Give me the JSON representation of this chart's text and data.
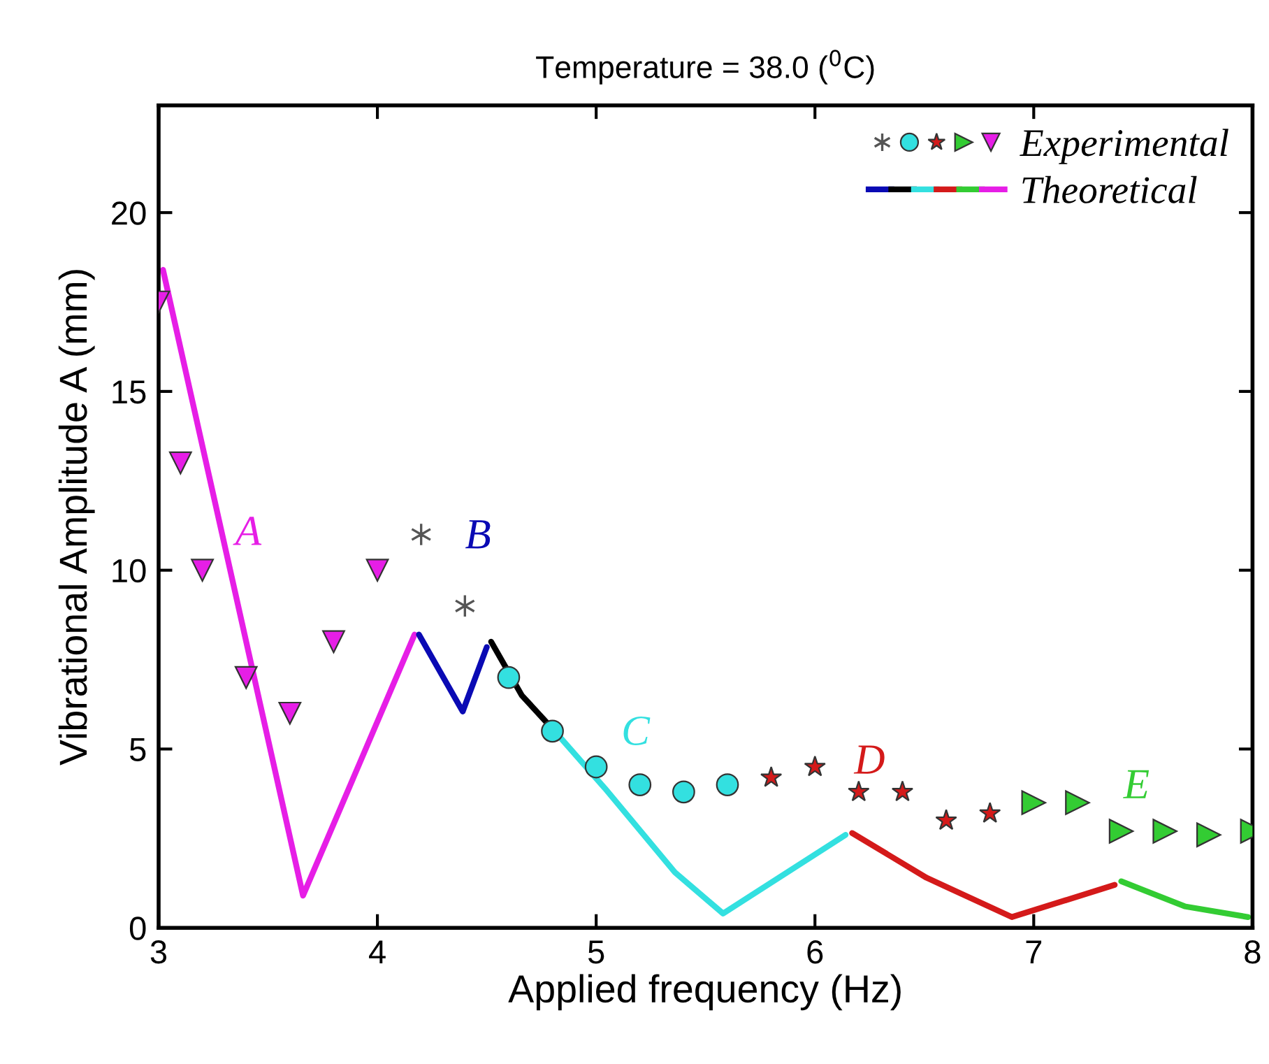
{
  "chart_data": {
    "type": "line",
    "title": "Temperature = 38.0 ($^{0}$C)",
    "xlabel": "Applied frequency (Hz)",
    "ylabel": "Vibrational Amplitude A (mm)",
    "xlim": [
      3,
      8
    ],
    "ylim": [
      0,
      23
    ],
    "xticks": [
      3,
      4,
      5,
      6,
      7,
      8
    ],
    "yticks": [
      0,
      5,
      10,
      15,
      20
    ],
    "grid": false,
    "legend": "top right",
    "series": [
      {
        "name": "Theoretical",
        "color": "#e61ee6",
        "x": [
          3.02,
          3.66,
          4.17
        ],
        "values": [
          18.4,
          0.9,
          8.2
        ]
      },
      {
        "color": "#0a0ab4",
        "x": [
          4.19,
          4.39,
          4.5
        ],
        "values": [
          8.2,
          6.05,
          7.85
        ]
      },
      {
        "color": "#000000",
        "x": [
          4.52,
          4.66,
          4.81
        ],
        "values": [
          8.0,
          6.5,
          5.5
        ]
      },
      {
        "color": "#33e0e0",
        "x": [
          4.81,
          5.04,
          5.36,
          5.58,
          6.14
        ],
        "values": [
          5.5,
          3.9,
          1.55,
          0.4,
          2.6
        ]
      },
      {
        "color": "#d41a1a",
        "x": [
          6.17,
          6.51,
          6.9,
          7.37
        ],
        "values": [
          2.65,
          1.4,
          0.3,
          1.2
        ]
      },
      {
        "color": "#33cc33",
        "x": [
          7.4,
          7.69,
          7.98
        ],
        "values": [
          1.3,
          0.6,
          0.3
        ]
      },
      {
        "name": "Experimental",
        "type": "scatter",
        "marker": "triangle",
        "color": "#e61ee6",
        "x": [
          3.0,
          3.1,
          3.2,
          3.4,
          3.6,
          3.8,
          4.0
        ],
        "values": [
          17.5,
          13,
          10,
          7,
          6,
          8,
          10
        ]
      },
      {
        "type": "scatter",
        "marker": "cross",
        "color": "#555555",
        "x": [
          4.2,
          4.4
        ],
        "values": [
          11,
          9
        ]
      },
      {
        "type": "scatter",
        "marker": "circle",
        "color": "#33e0e0",
        "x": [
          4.6,
          4.8,
          5.0,
          5.2,
          5.4,
          5.6
        ],
        "values": [
          7,
          5.5,
          4.5,
          4,
          3.8,
          4
        ]
      },
      {
        "type": "scatter",
        "marker": "star",
        "color": "#d41a1a",
        "x": [
          5.8,
          6.0,
          6.2,
          6.4,
          6.6,
          6.8
        ],
        "values": [
          4.2,
          4.5,
          3.8,
          3.8,
          3.0,
          3.2
        ]
      },
      {
        "type": "scatter",
        "marker": "triangle",
        "color": "#33cc33",
        "x": [
          7.0,
          7.2,
          7.4,
          7.6,
          7.8,
          8.0
        ],
        "values": [
          3.5,
          3.5,
          2.7,
          2.7,
          2.6,
          2.7
        ]
      }
    ],
    "annotations": [
      "A",
      "B",
      "C",
      "D",
      "E"
    ]
  }
}
